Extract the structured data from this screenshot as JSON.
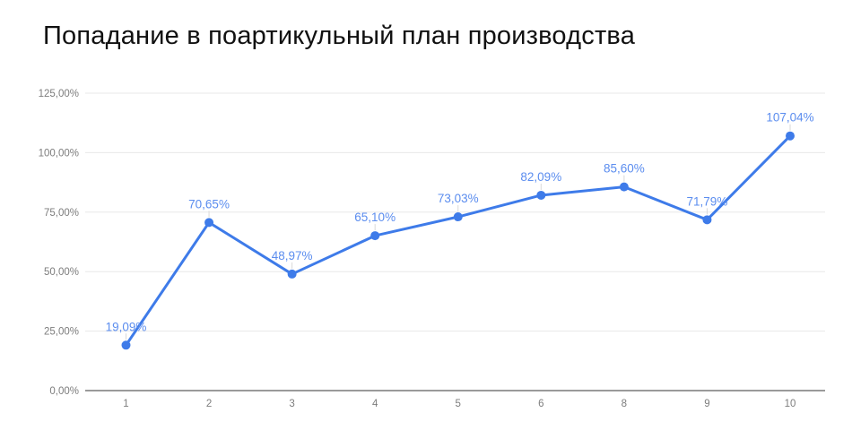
{
  "title": "Попадание в поартикульный план производства",
  "chart_data": {
    "type": "line",
    "categories": [
      "1",
      "2",
      "3",
      "4",
      "5",
      "6",
      "8",
      "9",
      "10"
    ],
    "values": [
      19.09,
      70.65,
      48.97,
      65.1,
      73.03,
      82.09,
      85.6,
      71.79,
      107.04
    ],
    "point_labels": [
      "19,09%",
      "70,65%",
      "48,97%",
      "65,10%",
      "73,03%",
      "82,09%",
      "85,60%",
      "71,79%",
      "107,04%"
    ],
    "y_ticks": [
      {
        "value": 0,
        "label": "0,00%"
      },
      {
        "value": 25,
        "label": "25,00%"
      },
      {
        "value": 50,
        "label": "50,00%"
      },
      {
        "value": 75,
        "label": "75,00%"
      },
      {
        "value": 100,
        "label": "100,00%"
      },
      {
        "value": 125,
        "label": "125,00%"
      }
    ],
    "ylim": [
      0,
      125
    ],
    "grid": true,
    "legend": "none",
    "colors": {
      "line": "#3e7be9",
      "point": "#3e7be9",
      "data_label": "#5b8def",
      "leader_line": "#d9d9d9",
      "grid_line": "#e8e8e8",
      "axis_line": "#9a9a9a",
      "axis_text": "#7d7d7d",
      "title_text": "#111111",
      "background": "#ffffff"
    }
  }
}
